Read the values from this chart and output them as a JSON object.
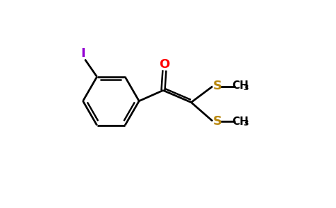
{
  "background_color": "#ffffff",
  "bond_color": "#000000",
  "oxygen_color": "#ff0000",
  "sulfur_color": "#b8860b",
  "iodine_color": "#9400d3",
  "iodine_label": "I",
  "oxygen_label": "O",
  "sulfur_label": "S",
  "ch3_label": "CH",
  "ch3_sub": "3",
  "figsize": [
    4.84,
    3.0
  ],
  "dpi": 100
}
